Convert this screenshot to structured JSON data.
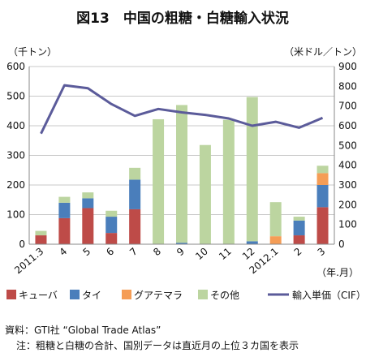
{
  "chart_data": {
    "type": "bar",
    "title": "図13　中国の粗糖・白糖輸入状況",
    "ylabel_left": "（千トン）",
    "ylabel_right": "（米ドル／トン）",
    "xlabel_unit": "（年.月）",
    "categories": [
      "2011.3",
      "4",
      "5",
      "6",
      "7",
      "8",
      "9",
      "10",
      "11",
      "12",
      "2012.1",
      "2",
      "3"
    ],
    "ylim_left": [
      0,
      600
    ],
    "yticks_left": [
      0,
      100,
      200,
      300,
      400,
      500,
      600
    ],
    "ylim_right": [
      0,
      900
    ],
    "yticks_right": [
      0,
      100,
      200,
      300,
      400,
      500,
      600,
      700,
      800,
      900
    ],
    "stacked": true,
    "series": [
      {
        "name": "キューバ",
        "color": "#be4b48",
        "axis": "left",
        "values": [
          30,
          88,
          122,
          38,
          118,
          0,
          0,
          0,
          0,
          0,
          0,
          30,
          125
        ]
      },
      {
        "name": "タイ",
        "color": "#4a7ebb",
        "axis": "left",
        "values": [
          0,
          52,
          33,
          55,
          100,
          0,
          5,
          0,
          0,
          10,
          0,
          50,
          75
        ]
      },
      {
        "name": "グアテマラ",
        "color": "#f59d56",
        "axis": "left",
        "values": [
          0,
          0,
          0,
          0,
          0,
          0,
          0,
          0,
          0,
          0,
          27,
          0,
          40
        ]
      },
      {
        "name": "その他",
        "color": "#bcd5a0",
        "axis": "left",
        "values": [
          15,
          20,
          20,
          20,
          40,
          422,
          465,
          335,
          420,
          487,
          115,
          13,
          25
        ]
      }
    ],
    "line_series": {
      "name": "輸入単価（CIF）",
      "color": "#5b5b9a",
      "axis": "right",
      "values": [
        560,
        805,
        790,
        710,
        650,
        685,
        668,
        655,
        637,
        600,
        620,
        590,
        640
      ]
    },
    "grid": true,
    "legend_position": "bottom"
  },
  "notes": {
    "source": "資料：GTI社 “Global Trade Atlas”",
    "note": "注：粗糖と白糖の合計、国別データは直近月の上位３カ国を表示"
  }
}
